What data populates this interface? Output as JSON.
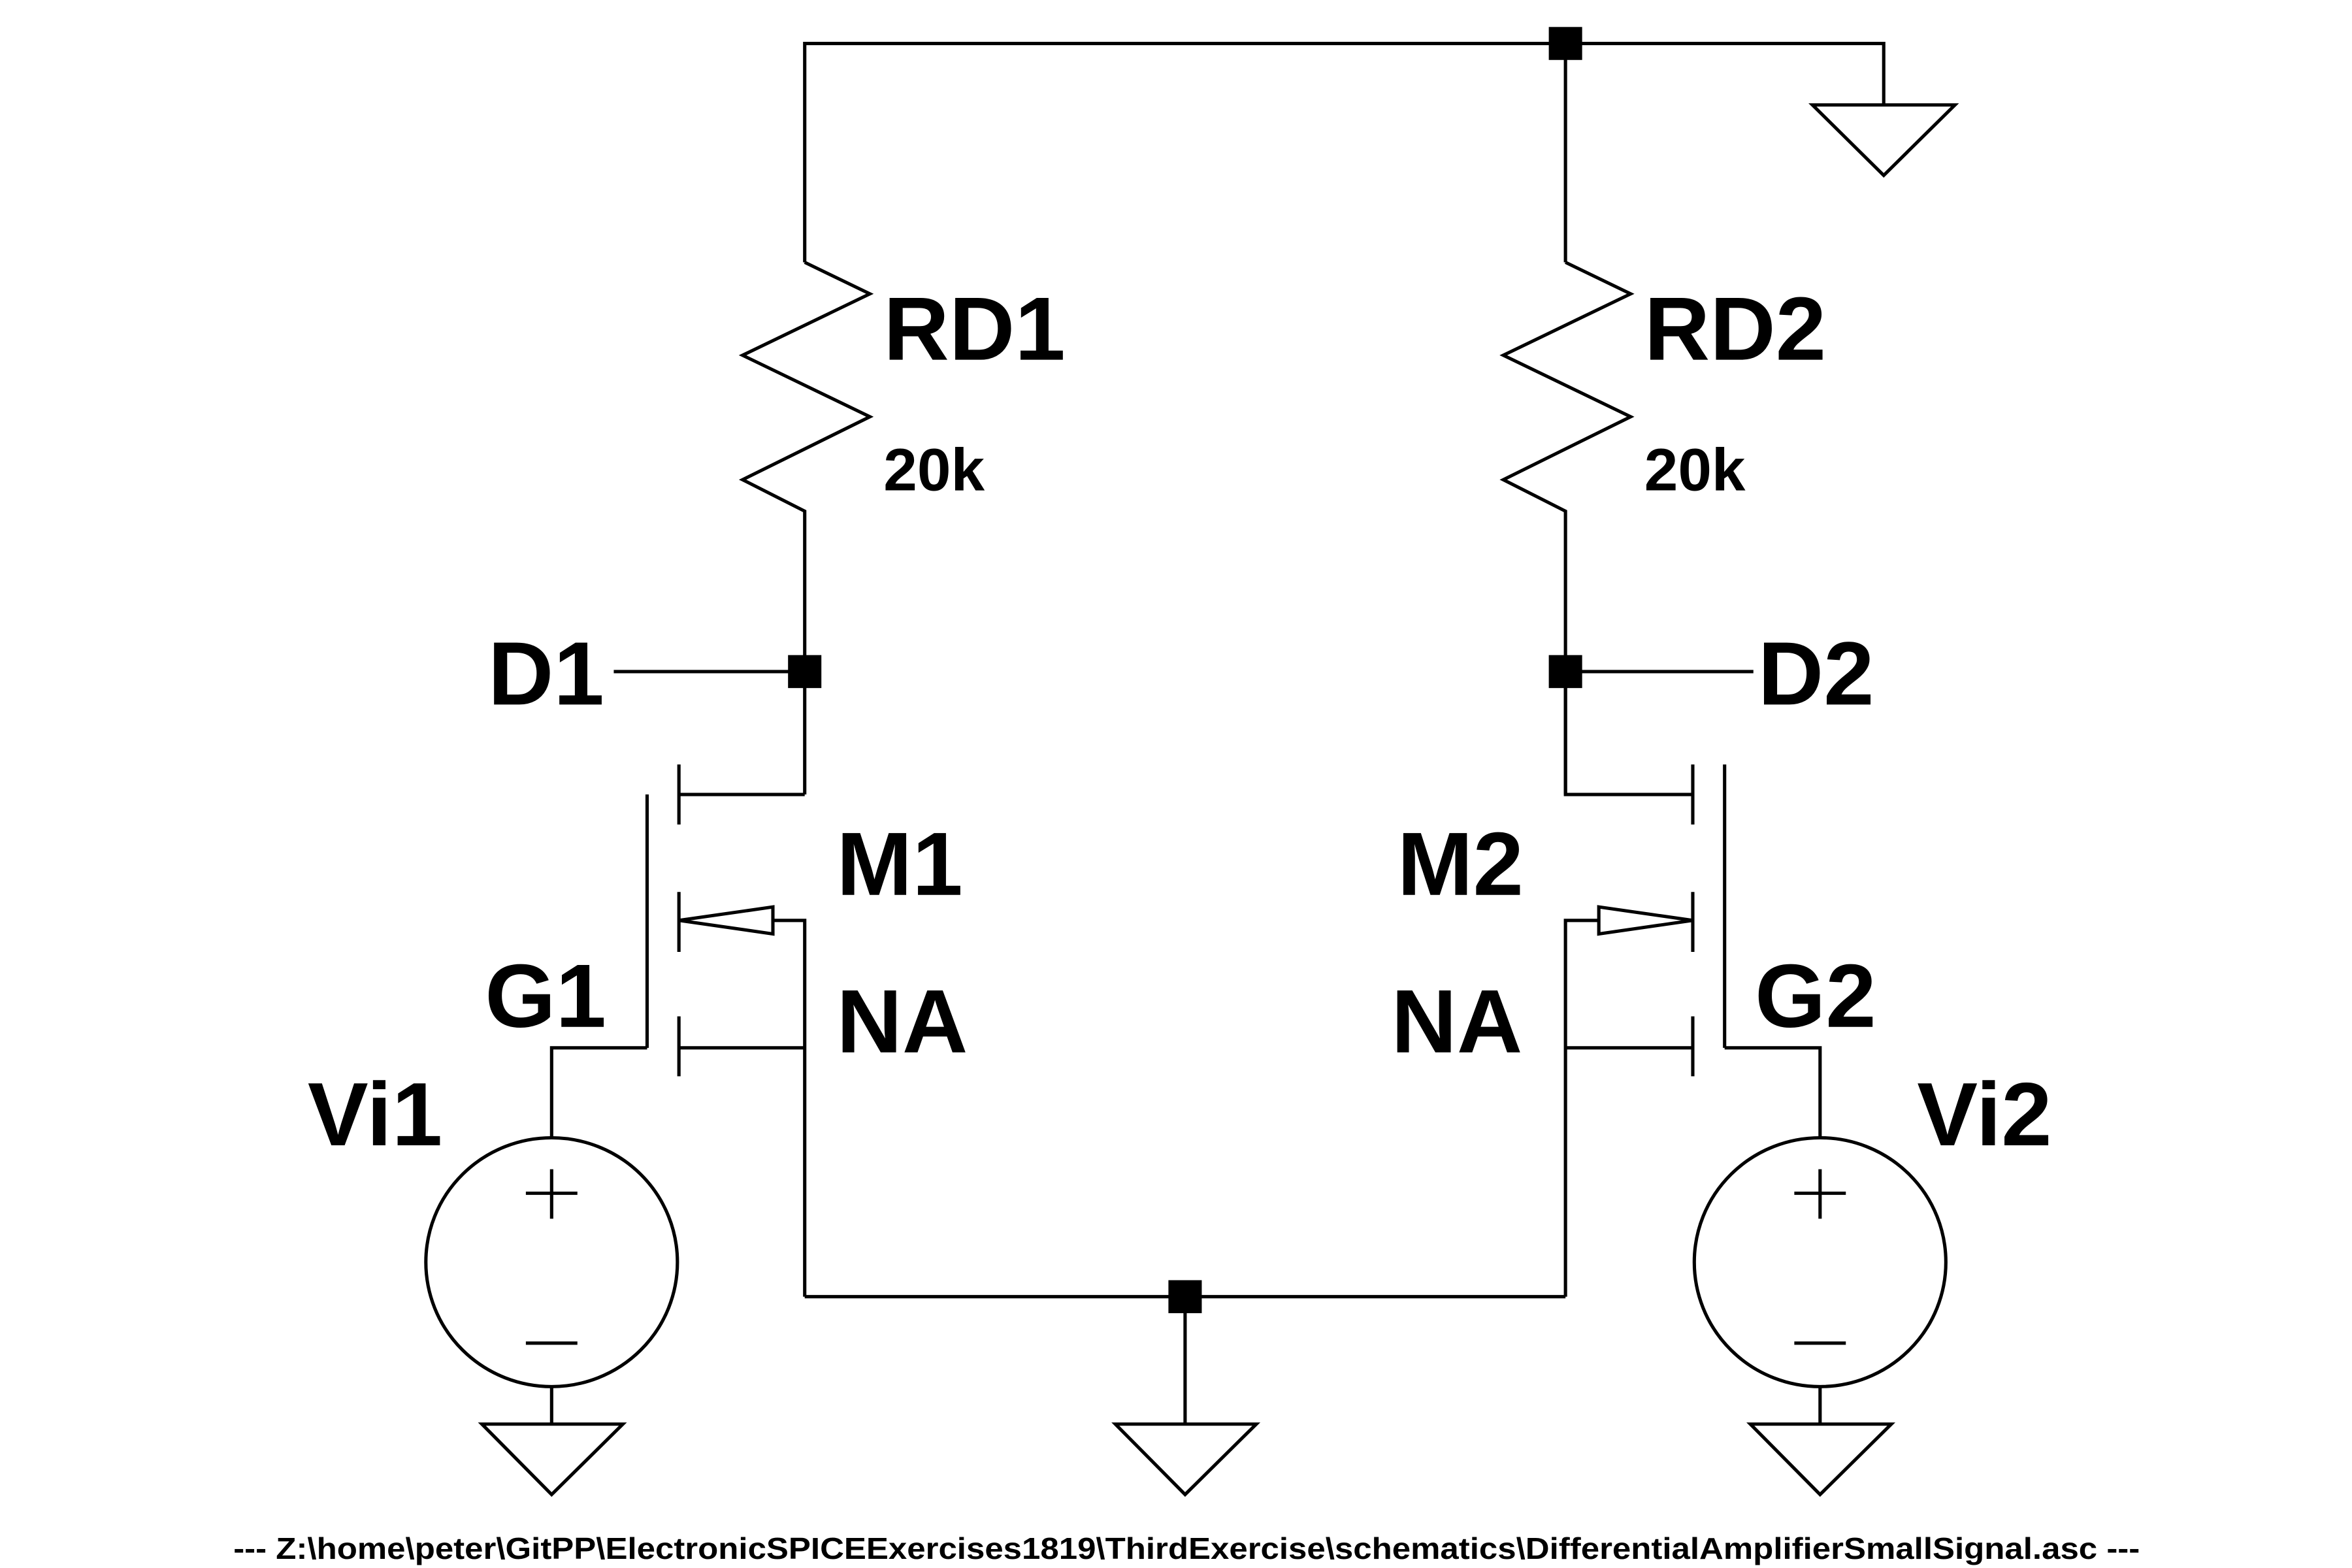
{
  "schematic": {
    "labels": {
      "rd1": "RD1",
      "rd1_value": "20k",
      "rd2": "RD2",
      "rd2_value": "20k",
      "d1": "D1",
      "d2": "D2",
      "m1": "M1",
      "m2": "M2",
      "m1_model": "NA",
      "m2_model": "NA",
      "g1": "G1",
      "g2": "G2",
      "vi1": "Vi1",
      "vi2": "Vi2"
    },
    "footer": "---  Z:\\home\\peter\\GitPP\\ElectronicSPICEExercises1819\\ThirdExercise\\schematics\\DifferentialAmplifierSmallSignal.asc  ---"
  }
}
